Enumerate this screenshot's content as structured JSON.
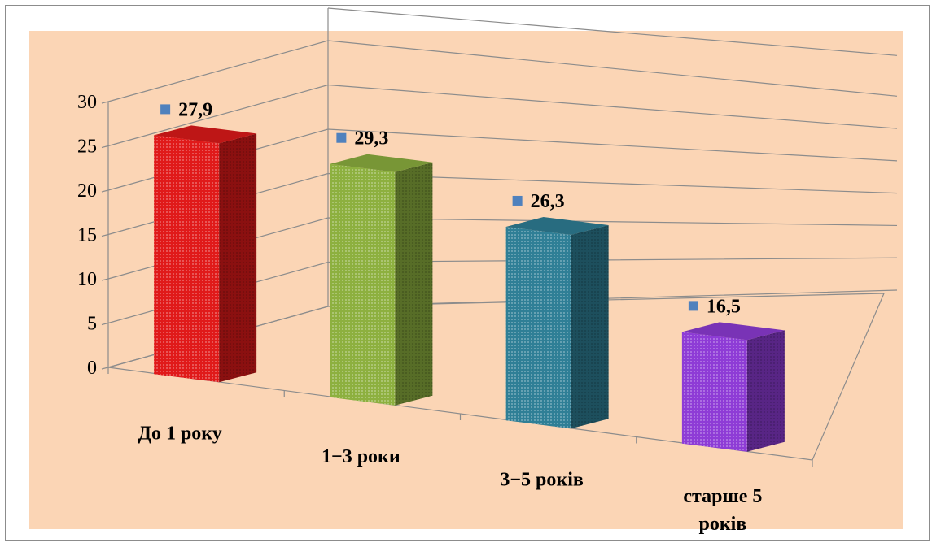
{
  "chart_data": {
    "type": "bar",
    "title": "",
    "xlabel": "",
    "ylabel": "",
    "ylim": [
      0,
      30
    ],
    "yticks": [
      0,
      5,
      10,
      15,
      20,
      25,
      30
    ],
    "categories": [
      "До 1 року",
      "1−3 роки",
      "3−5 років",
      "старше 5 років"
    ],
    "category_lines": [
      [
        "До 1 року"
      ],
      [
        "1−3 роки"
      ],
      [
        "3−5 років"
      ],
      [
        "старше 5",
        "років"
      ]
    ],
    "values": [
      27.9,
      29.3,
      26.3,
      16.5
    ],
    "value_labels": [
      "27,9",
      "29,3",
      "26,3",
      "16,5"
    ],
    "bar_colors": [
      "#e01a1a",
      "#8db03f",
      "#2f7f96",
      "#8e3cd6"
    ],
    "marker_color": "#4f81bd",
    "plot_background": "#fbd5b5",
    "grid": true,
    "style": "3d-columns"
  }
}
